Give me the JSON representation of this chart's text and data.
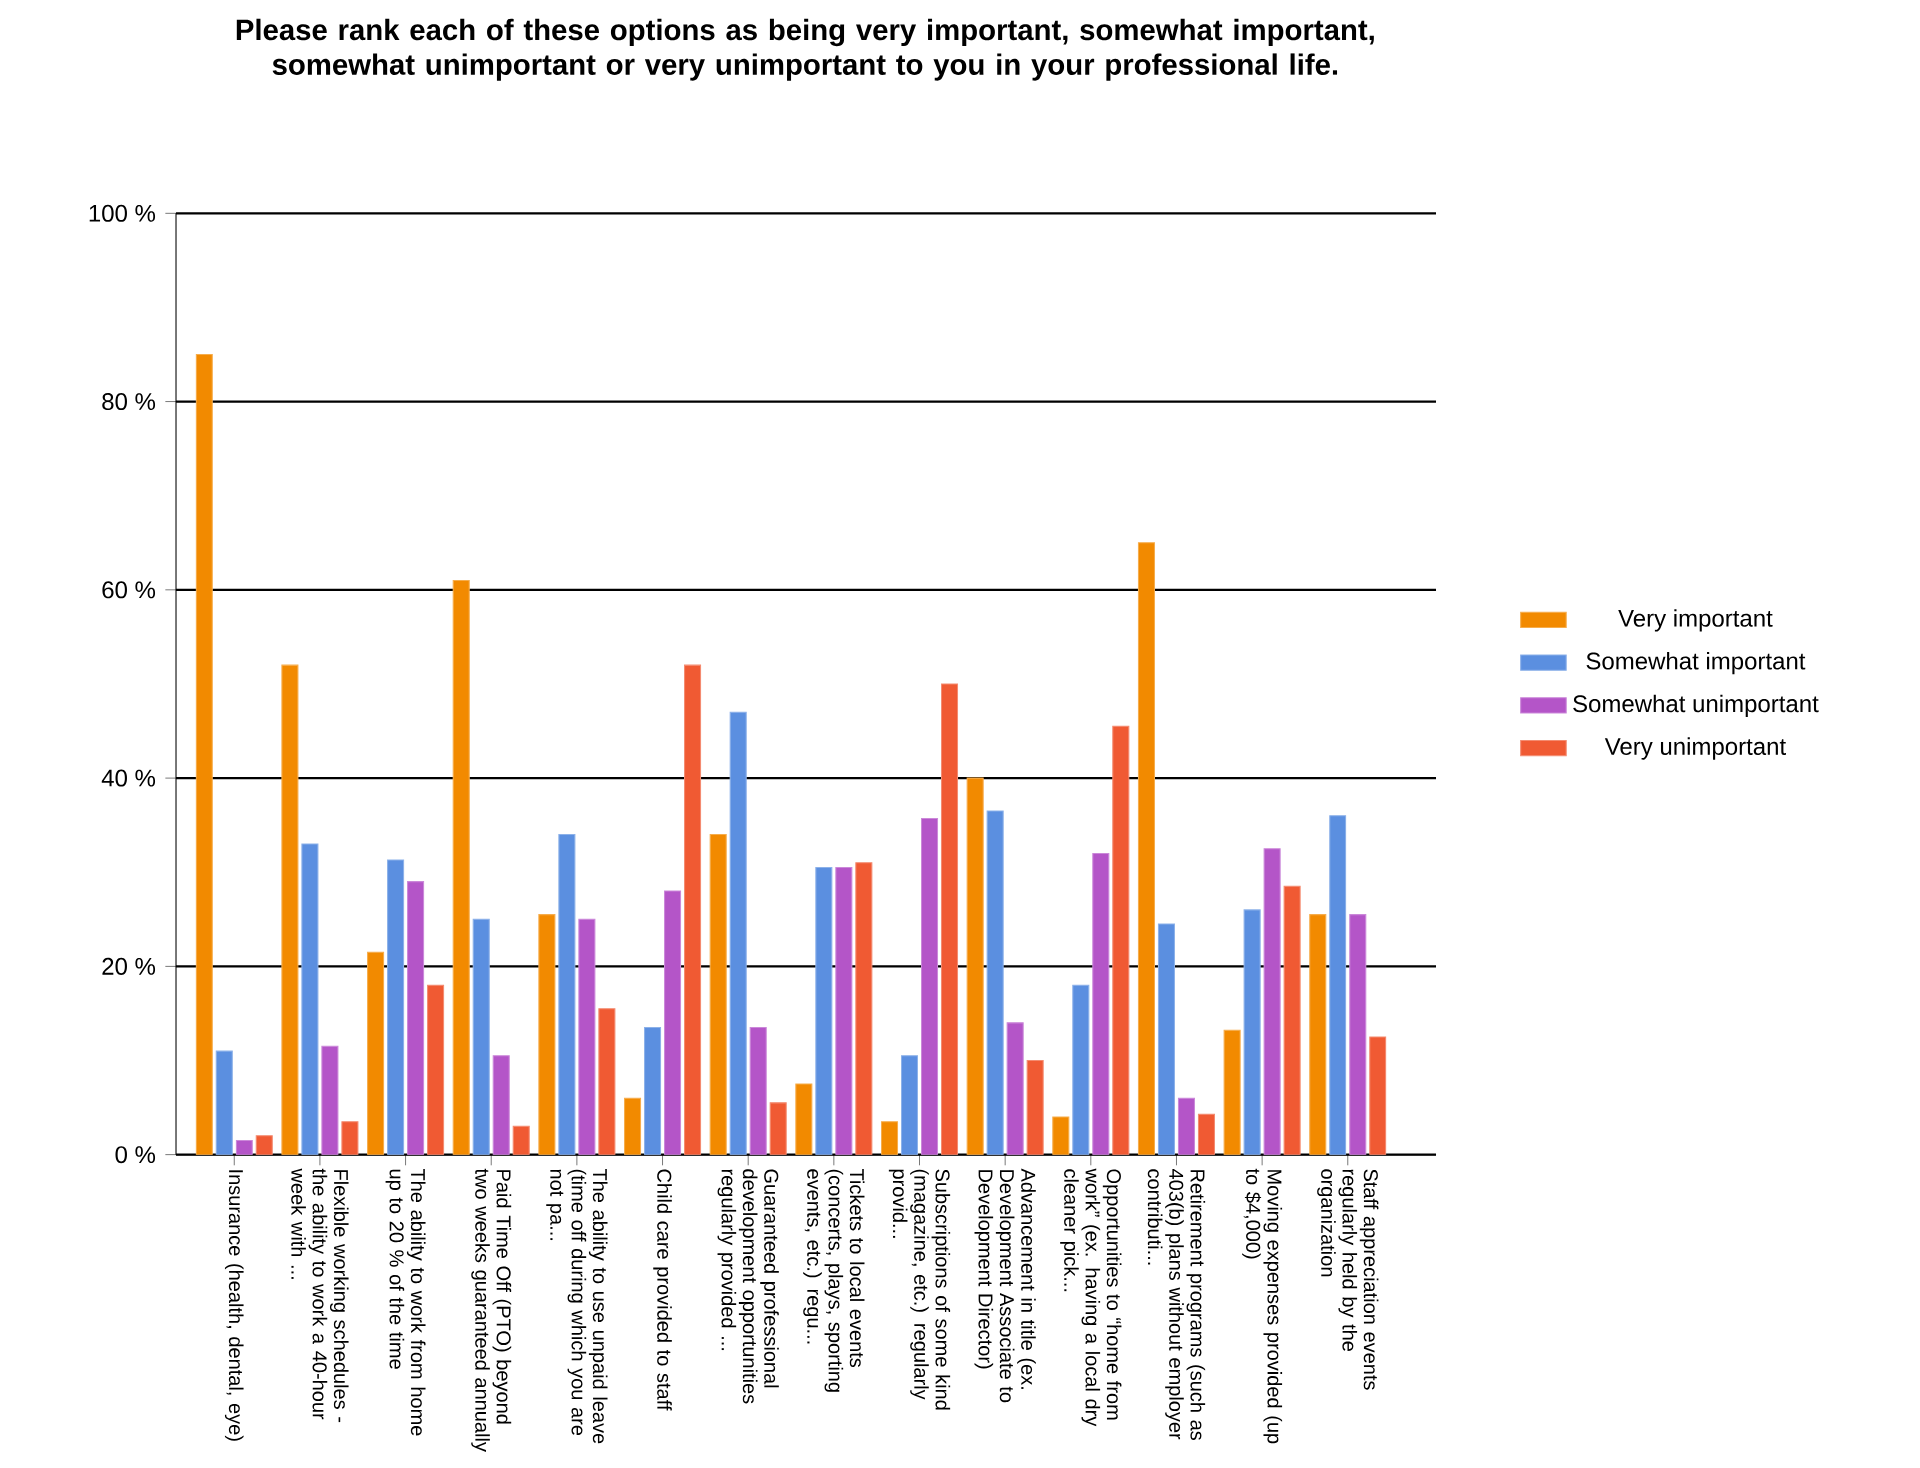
{
  "chart_data": {
    "type": "bar",
    "title": "Please rank each of these options as being very important, somewhat important, somewhat unimportant or very unimportant to you in your professional life.",
    "categories": [
      "Insurance (health, dental, eye)",
      "Flexible working schedules - the ability to work a 40-hour week with ...",
      "The ability to work from home up to 20 % of the time",
      "Paid Time Off (PTO) beyond two weeks guaranteed annually",
      "The ability to use unpaid leave (time off during which you are not pa...",
      "Child care provided to staff",
      "Guaranteed professional development opportunities regularly provided ...",
      "Tickets to local events (concerts, plays, sporting events, etc.) regu...",
      "Subscriptions of some kind (magazine, etc.) regularly provid...",
      "Advancement in title (ex. Development Associate to Development Director)",
      "Opportunities to “home from work” (ex. having a local dry cleaner pick...",
      "Retirement programs (such as 403(b) plans without employer contributi...",
      "Moving expenses provided (up to $4,000)",
      "Staff appreciation events regularly held by the organization"
    ],
    "series": [
      {
        "name": "Very important",
        "color": "#f28a00",
        "values": [
          85,
          52,
          21.5,
          61,
          25.5,
          6,
          34,
          7.5,
          3.5,
          40,
          4,
          65,
          13.2,
          25.5
        ]
      },
      {
        "name": "Somewhat important",
        "color": "#5b8fe0",
        "values": [
          11,
          33,
          31.3,
          25,
          34,
          13.5,
          47,
          30.5,
          10.5,
          36.5,
          18,
          24.5,
          26,
          36
        ]
      },
      {
        "name": "Somewhat unimportant",
        "color": "#b455c8",
        "values": [
          1.5,
          11.5,
          29,
          10.5,
          25,
          28,
          13.5,
          30.5,
          35.7,
          14,
          32,
          6,
          32.5,
          25.5
        ]
      },
      {
        "name": "Very unimportant",
        "color": "#f05a33",
        "values": [
          2,
          3.5,
          18,
          3,
          15.5,
          52,
          5.5,
          31,
          50,
          10,
          45.5,
          4.3,
          28.5,
          12.5
        ]
      }
    ],
    "ylim": [
      0,
      100
    ],
    "yticks": [
      {
        "value": 0,
        "label": "0 %"
      },
      {
        "value": 20,
        "label": "20 %"
      },
      {
        "value": 40,
        "label": "40 %"
      },
      {
        "value": 60,
        "label": "60 %"
      },
      {
        "value": 80,
        "label": "80 %"
      },
      {
        "value": 100,
        "label": "100 %"
      }
    ],
    "grid": "y",
    "legend": "right"
  }
}
